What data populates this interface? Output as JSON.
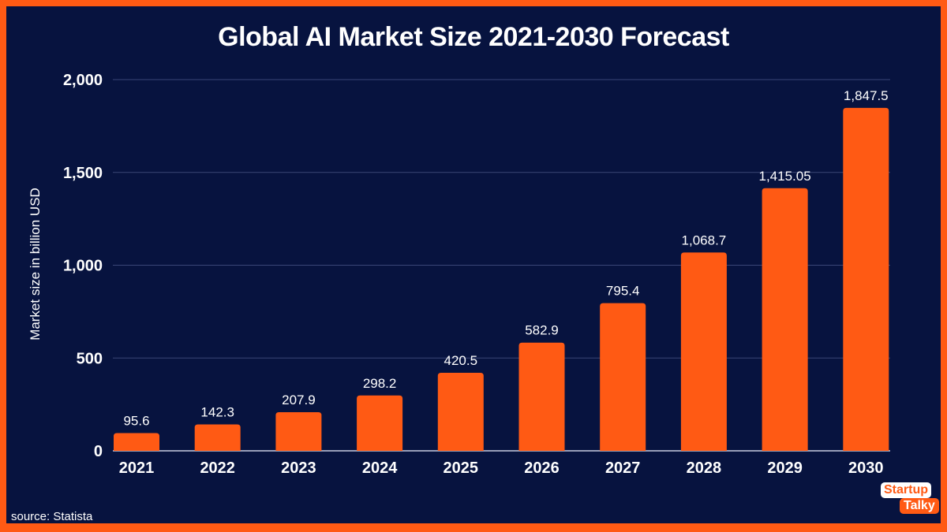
{
  "chart_data": {
    "type": "bar",
    "title": "Global AI Market Size 2021-2030 Forecast",
    "xlabel": "",
    "ylabel": "Market size in billion USD",
    "categories": [
      "2021",
      "2022",
      "2023",
      "2024",
      "2025",
      "2026",
      "2027",
      "2028",
      "2029",
      "2030"
    ],
    "values": [
      95.6,
      142.3,
      207.9,
      298.2,
      420.5,
      582.9,
      795.4,
      1068.7,
      1415.05,
      1847.5
    ],
    "value_labels": [
      "95.6",
      "142.3",
      "207.9",
      "298.2",
      "420.5",
      "582.9",
      "795.4",
      "1,068.7",
      "1,415.05",
      "1,847.5"
    ],
    "ylim": [
      0,
      2000
    ],
    "yticks": [
      0,
      500,
      1000,
      1500,
      2000
    ],
    "ytick_labels": [
      "0",
      "500",
      "1,000",
      "1,500",
      "2,000"
    ],
    "grid": true,
    "bar_color": "#ff5a14",
    "background_color": "#07133f"
  },
  "source": "source: Statista",
  "logo": {
    "line1": "Startup",
    "line2": "Talky"
  }
}
